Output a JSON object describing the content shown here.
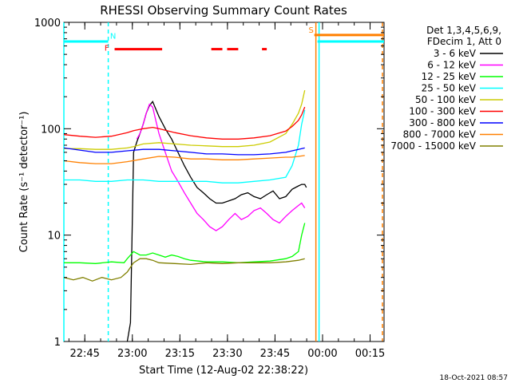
{
  "chart_data": {
    "type": "line",
    "title": "RHESSI Observing Summary Count Rates",
    "xlabel": "Start Time (12-Aug-02 22:38:22)",
    "ylabel": "Count Rate (s⁻¹ detector⁻¹)",
    "yscale": "log",
    "ylim": [
      1,
      1000
    ],
    "xlim_minutes_after_start": [
      0,
      101
    ],
    "xlim_times": [
      "22:38:22",
      "00:19:22"
    ],
    "y_ticks": [
      "1",
      "10",
      "100",
      "1000"
    ],
    "x_ticks": [
      {
        "label": "22:45",
        "minutes": 6.6
      },
      {
        "label": "23:00",
        "minutes": 21.6
      },
      {
        "label": "23:15",
        "minutes": 36.6
      },
      {
        "label": "23:30",
        "minutes": 51.6
      },
      {
        "label": "23:45",
        "minutes": 66.6
      },
      {
        "label": "00:00",
        "minutes": 81.6
      },
      {
        "label": "00:15",
        "minutes": 96.6
      }
    ],
    "legend_placement": "right",
    "legend_header": [
      "Det 1,3,4,5,6,9,",
      "FDecim 1, Att 0"
    ],
    "grid": false,
    "series": [
      {
        "name": "3 - 6 keV",
        "color": "#000000",
        "x": [
          20,
          21,
          22,
          23,
          24,
          25,
          26,
          27,
          28,
          30,
          32,
          34,
          36,
          38,
          40,
          42,
          44,
          46,
          48,
          50,
          52,
          54,
          56,
          58,
          60,
          62,
          64,
          66,
          68,
          70,
          72,
          74,
          75,
          76,
          76.5
        ],
        "y": [
          1,
          1.5,
          60,
          75,
          90,
          110,
          140,
          165,
          180,
          130,
          100,
          80,
          60,
          45,
          35,
          28,
          25,
          22,
          20,
          20,
          21,
          22,
          24,
          25,
          23,
          22,
          24,
          26,
          22,
          23,
          27,
          29,
          30,
          30,
          28
        ]
      },
      {
        "name": "6 - 12 keV",
        "color": "#ff00ff",
        "x": [
          23,
          24,
          25,
          26,
          27,
          28,
          29,
          30,
          32,
          34,
          36,
          38,
          40,
          42,
          44,
          46,
          48,
          50,
          52,
          54,
          56,
          58,
          60,
          62,
          64,
          66,
          68,
          70,
          72,
          74,
          75,
          76
        ],
        "y": [
          80,
          90,
          110,
          140,
          170,
          160,
          120,
          90,
          60,
          40,
          32,
          25,
          20,
          16,
          14,
          12,
          11,
          12,
          14,
          16,
          14,
          15,
          17,
          18,
          16,
          14,
          13,
          15,
          17,
          19,
          20,
          18
        ]
      },
      {
        "name": "12 - 25 keV",
        "color": "#00ff00",
        "x": [
          0,
          5,
          10,
          15,
          19,
          20,
          22,
          24,
          26,
          28,
          30,
          32,
          34,
          36,
          38,
          40,
          45,
          50,
          55,
          60,
          65,
          70,
          72,
          74,
          75,
          76
        ],
        "y": [
          5.5,
          5.5,
          5.4,
          5.6,
          5.5,
          6,
          7,
          6.5,
          6.5,
          6.8,
          6.5,
          6.2,
          6.5,
          6.3,
          6,
          5.8,
          5.6,
          5.6,
          5.5,
          5.6,
          5.7,
          6,
          6.3,
          7,
          10,
          13
        ]
      },
      {
        "name": "25 - 50 keV",
        "color": "#00ffff",
        "x": [
          0,
          5,
          10,
          15,
          20,
          22,
          25,
          30,
          35,
          40,
          45,
          50,
          55,
          60,
          65,
          70,
          72,
          74,
          75,
          76
        ],
        "y": [
          33,
          33,
          32,
          32,
          33,
          33,
          33,
          32,
          32,
          32,
          32,
          31,
          31,
          32,
          33,
          35,
          45,
          70,
          110,
          150
        ]
      },
      {
        "name": "50 - 100 keV",
        "color": "#cccc00",
        "x": [
          0,
          5,
          10,
          15,
          20,
          22,
          25,
          30,
          35,
          40,
          45,
          50,
          55,
          60,
          65,
          70,
          72,
          74,
          75,
          76
        ],
        "y": [
          65,
          65,
          64,
          64,
          66,
          68,
          72,
          74,
          72,
          70,
          69,
          68,
          68,
          70,
          75,
          90,
          110,
          140,
          170,
          230
        ]
      },
      {
        "name": "100 - 300 keV",
        "color": "#ff0000",
        "x": [
          0,
          5,
          10,
          15,
          20,
          22,
          25,
          28,
          30,
          35,
          40,
          45,
          50,
          55,
          60,
          65,
          70,
          72,
          74,
          75,
          76
        ],
        "y": [
          88,
          85,
          83,
          85,
          92,
          96,
          100,
          103,
          100,
          92,
          86,
          82,
          80,
          80,
          82,
          86,
          95,
          105,
          120,
          135,
          160
        ]
      },
      {
        "name": "300 - 800 keV",
        "color": "#0000ff",
        "x": [
          0,
          5,
          10,
          15,
          20,
          25,
          30,
          35,
          40,
          45,
          50,
          55,
          60,
          65,
          70,
          72,
          74,
          76
        ],
        "y": [
          66,
          63,
          60,
          60,
          62,
          64,
          64,
          62,
          60,
          58,
          58,
          57,
          57,
          58,
          60,
          62,
          64,
          66
        ]
      },
      {
        "name": "800 - 7000 keV",
        "color": "#ff8000",
        "x": [
          0,
          5,
          10,
          15,
          20,
          25,
          30,
          35,
          40,
          45,
          50,
          55,
          60,
          65,
          70,
          72,
          74,
          76
        ],
        "y": [
          50,
          48,
          47,
          47,
          49,
          52,
          55,
          54,
          52,
          52,
          51,
          51,
          52,
          53,
          54,
          54,
          55,
          56
        ]
      },
      {
        "name": "7000 - 15000 keV",
        "color": "#808000",
        "x": [
          0,
          3,
          6,
          9,
          12,
          15,
          18,
          20,
          22,
          24,
          26,
          28,
          30,
          35,
          40,
          45,
          50,
          55,
          60,
          65,
          70,
          74,
          76
        ],
        "y": [
          4,
          3.8,
          4,
          3.7,
          4,
          3.8,
          4,
          4.5,
          5.5,
          6,
          6,
          5.8,
          5.5,
          5.4,
          5.3,
          5.5,
          5.4,
          5.5,
          5.5,
          5.5,
          5.6,
          5.8,
          6
        ]
      }
    ],
    "markers": [
      {
        "label": "N",
        "color": "#00ffff",
        "minutes": 14
      },
      {
        "label": "F",
        "color": "#ff0000",
        "minutes": 14.3
      },
      {
        "label": "S",
        "color": "#ff8000",
        "minutes": 79
      }
    ],
    "night_intervals": [
      {
        "color": "#00ffff",
        "from": 0,
        "to": 14,
        "y": 660
      },
      {
        "color": "#00ffff",
        "from": 80,
        "to": 101,
        "y": 660
      }
    ],
    "saa_intervals": [
      {
        "color": "#ff8000",
        "from": 79,
        "to": 101,
        "y": 760
      }
    ],
    "flare_intervals": [
      {
        "color": "#ff0000",
        "from": 16,
        "to": 31
      },
      {
        "color": "#ff0000",
        "from": 46.5,
        "to": 50
      },
      {
        "color": "#ff0000",
        "from": 51.5,
        "to": 55
      },
      {
        "color": "#ff0000",
        "from": 62.5,
        "to": 64
      }
    ],
    "vertical_lines": [
      {
        "color": "#00ffff",
        "minutes": 0,
        "style": "solid"
      },
      {
        "color": "#00ffff",
        "minutes": 14,
        "style": "dashed"
      },
      {
        "color": "#ff8000",
        "minutes": 79.5,
        "style": "solid"
      },
      {
        "color": "#00ffff",
        "minutes": 80.5,
        "style": "solid"
      },
      {
        "color": "#ff8000",
        "minutes": 100.5,
        "style": "dashed"
      }
    ]
  },
  "footer_timestamp": "18-Oct-2021 08:57"
}
